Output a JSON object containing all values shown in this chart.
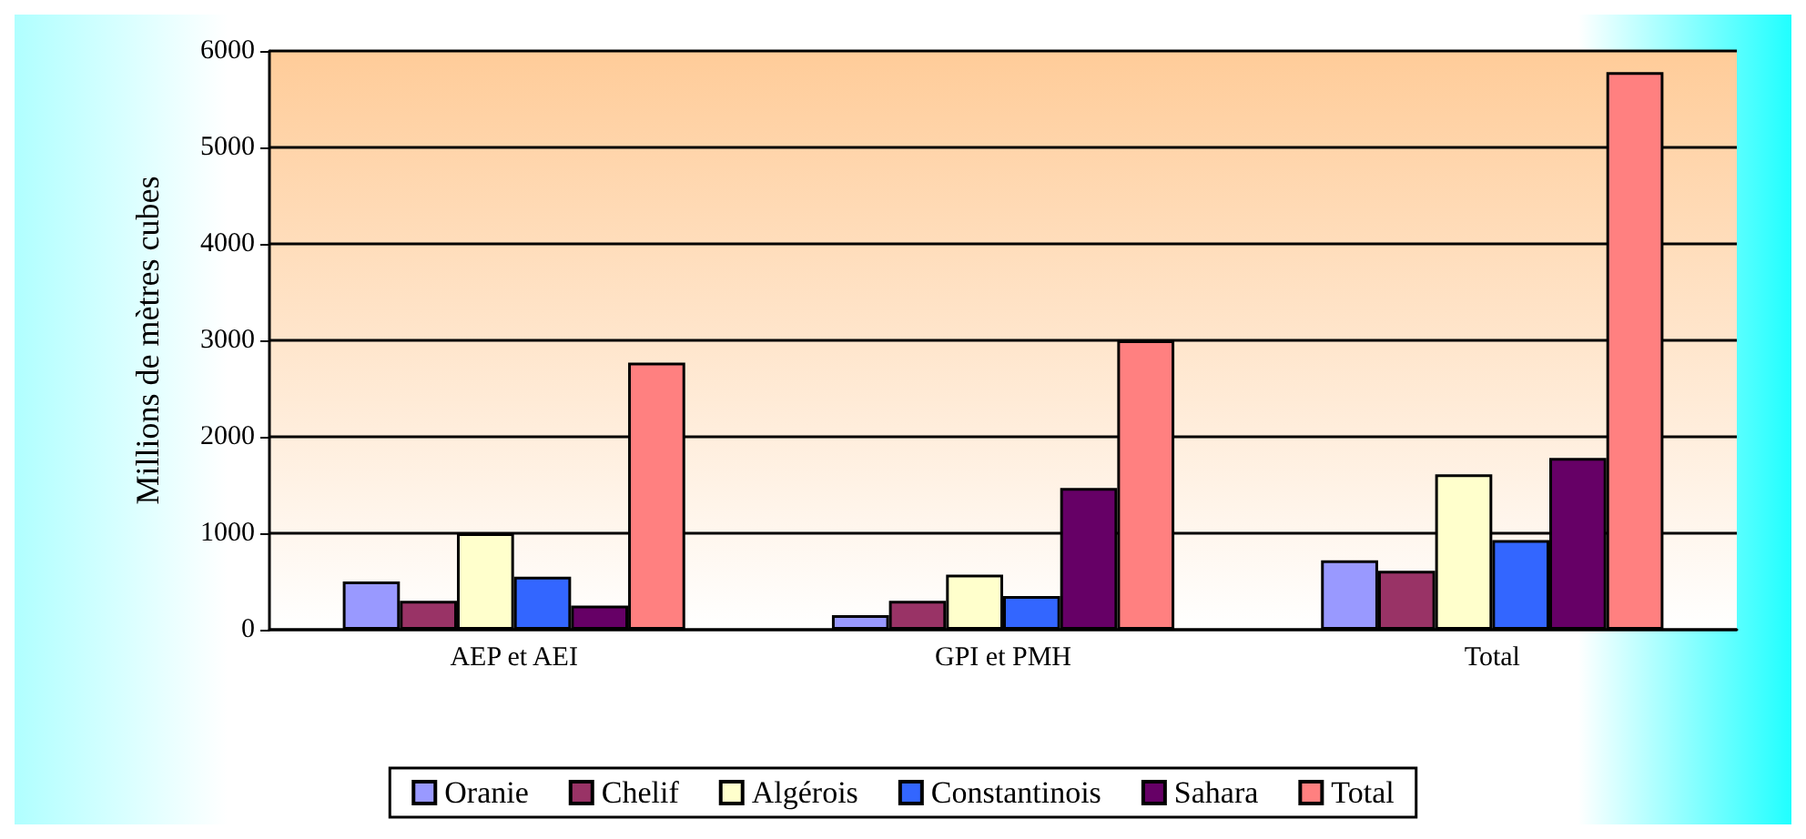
{
  "chart_data": {
    "type": "bar",
    "ylabel": "Millions de mètres cubes",
    "categories": [
      "AEP et AEI",
      "GPI et PMH",
      "Total"
    ],
    "series": [
      {
        "name": "Oranie",
        "color": "#9999ff",
        "values": [
          500,
          150,
          720
        ]
      },
      {
        "name": "Chelif",
        "color": "#993366",
        "values": [
          300,
          300,
          610
        ]
      },
      {
        "name": "Algérois",
        "color": "#ffffcc",
        "values": [
          1000,
          570,
          1610
        ]
      },
      {
        "name": "Constantinois",
        "color": "#3366ff",
        "values": [
          550,
          350,
          930
        ]
      },
      {
        "name": "Sahara",
        "color": "#660066",
        "values": [
          250,
          1470,
          1780
        ]
      },
      {
        "name": "Total",
        "color": "#ff8080",
        "values": [
          2770,
          3000,
          5780
        ]
      }
    ],
    "ylim": [
      0,
      6000
    ],
    "yticks": [
      0,
      1000,
      2000,
      3000,
      4000,
      5000,
      6000
    ],
    "grid": "y",
    "legend": "bottom"
  }
}
